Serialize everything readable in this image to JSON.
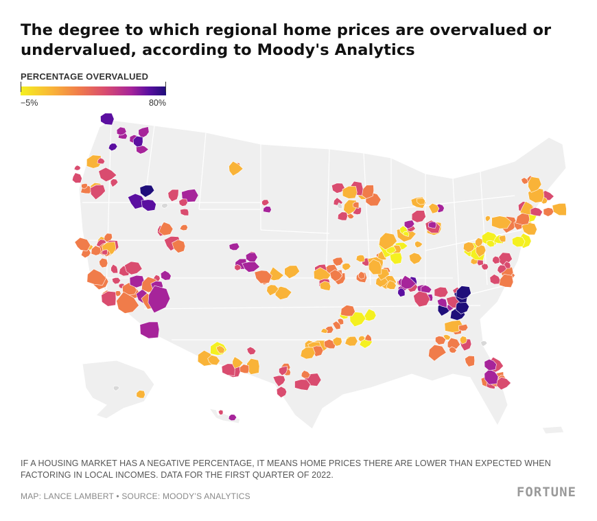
{
  "title": "The degree to which regional home prices are overvalued or undervalued, according to Moody's Analytics",
  "legend": {
    "title": "PERCENTAGE OVERVALUED",
    "min_label": "−5%",
    "max_label": "80%",
    "min_value": -5,
    "max_value": 80,
    "colors": [
      "#f4f020",
      "#f9b338",
      "#f07c4a",
      "#d94c6f",
      "#a6249a",
      "#5b0fa0",
      "#1f0e7a"
    ]
  },
  "map": {
    "background_color": "#efefef",
    "border_color": "#ffffff",
    "no_data_color": "#d8d8d8"
  },
  "note": "IF A HOUSING MARKET HAS A NEGATIVE PERCENTAGE, IT MEANS HOME PRICES THERE ARE LOWER THAN EXPECTED WHEN FACTORING IN LOCAL INCOMES. DATA FOR THE FIRST QUARTER OF 2022.",
  "credit": "MAP: LANCE LAMBERT • SOURCE: MOODY’S ANALYTICS",
  "logo": "FORTUNE"
}
